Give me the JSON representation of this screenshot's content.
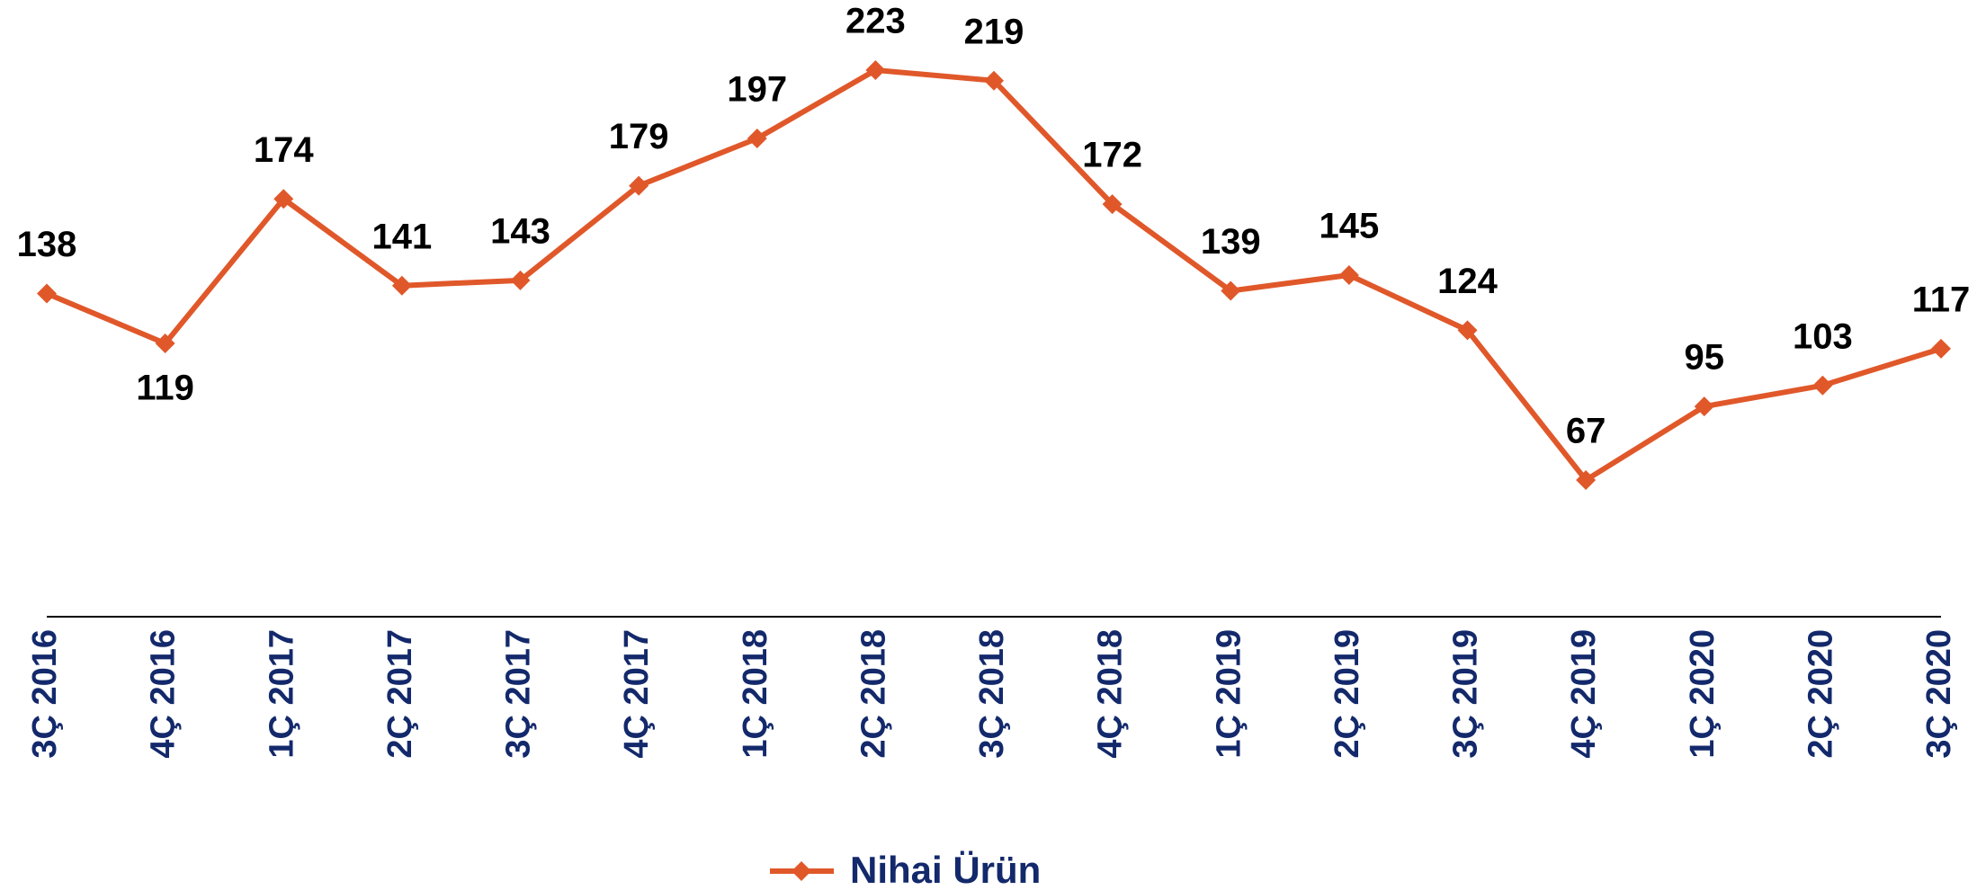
{
  "chart_data": {
    "type": "line",
    "categories": [
      "3Ç 2016",
      "4Ç 2016",
      "1Ç 2017",
      "2Ç 2017",
      "3Ç 2017",
      "4Ç 2017",
      "1Ç 2018",
      "2Ç 2018",
      "3Ç 2018",
      "4Ç 2018",
      "1Ç 2019",
      "2Ç 2019",
      "3Ç 2019",
      "4Ç 2019",
      "1Ç 2020",
      "2Ç 2020",
      "3Ç 2020"
    ],
    "series": [
      {
        "name": "Nihai Ürün",
        "color": "#e0582a",
        "values": [
          138,
          119,
          174,
          141,
          143,
          179,
          197,
          223,
          219,
          172,
          139,
          145,
          124,
          67,
          95,
          103,
          117
        ]
      }
    ],
    "legend": "bottom"
  }
}
